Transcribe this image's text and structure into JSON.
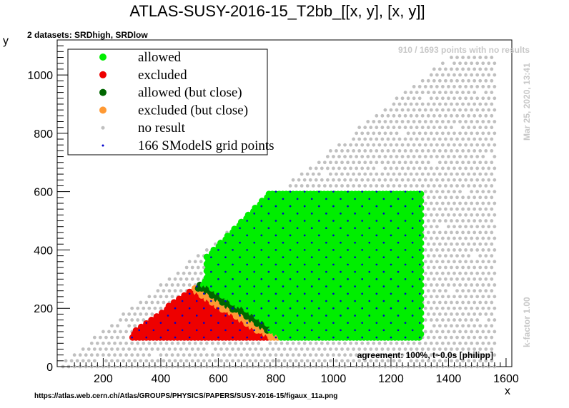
{
  "chart_data": {
    "type": "scatter",
    "title": "ATLAS-SUSY-2016-15_T2bb_[[x, y], [x, y]]",
    "xlabel": "x",
    "ylabel": "y",
    "xlim": [
      40,
      1620
    ],
    "ylim": [
      0,
      1120
    ],
    "x_ticks": [
      200,
      400,
      600,
      800,
      1000,
      1200,
      1400,
      1600
    ],
    "y_ticks": [
      0,
      200,
      400,
      600,
      800,
      1000
    ],
    "legend_position": "top-left",
    "datasets_note": "2 datasets: SRDhigh, SRDlow",
    "no_result_note": "910 / 1693 points with no results",
    "date_note": "Mar 25, 2020, 13:41",
    "kfactor_note": "k-factor 1.00",
    "agreement_note": "agreement: 100%, t~0.0s [philipp]",
    "source_url": "https://atlas.web.cern.ch/Atlas/GROUPS/PHYSICS/PAPERS/SUSY-2016-15/figaux_11a.png",
    "series": [
      {
        "name": "allowed",
        "color": "#00ee00",
        "region": "x 560-1300, y 100-600 (upper-right triangle above boundary)"
      },
      {
        "name": "excluded",
        "color": "#ee0000",
        "region": "x 300-700, y 100-300 (lower-left)"
      },
      {
        "name": "allowed (but close)",
        "color": "#006600",
        "region": "boundary near x 560-760, y 170-330"
      },
      {
        "name": "excluded (but close)",
        "color": "#ff9933",
        "region": "boundary near x 450-740, y 120-300"
      },
      {
        "name": "no result",
        "color": "#c0c0c0",
        "region": "grey background grid"
      },
      {
        "name": "166 SModelS grid points",
        "color": "#0000cc",
        "region": "grid inside coloured area"
      }
    ],
    "legend": [
      {
        "label": "allowed",
        "color": "#00ee00",
        "marker": "dot"
      },
      {
        "label": "excluded",
        "color": "#ee0000",
        "marker": "dot"
      },
      {
        "label": "allowed (but close)",
        "color": "#006600",
        "marker": "dot"
      },
      {
        "label": "excluded (but close)",
        "color": "#ff9933",
        "marker": "dot"
      },
      {
        "label": "no result",
        "color": "#c0c0c0",
        "marker": "small-dot"
      },
      {
        "label": "166 SModelS grid points",
        "color": "#0000cc",
        "marker": "tiny-dot"
      }
    ]
  }
}
